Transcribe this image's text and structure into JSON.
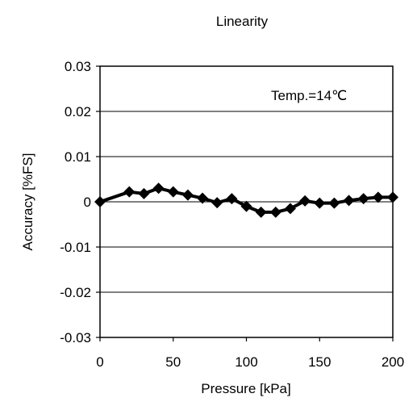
{
  "chart_data": {
    "type": "line",
    "title": "Linearity",
    "xlabel": "Pressure [kPa]",
    "ylabel": "Accuracy [%FS]",
    "xlim": [
      0,
      200
    ],
    "ylim": [
      -0.03,
      0.03
    ],
    "x_ticks": [
      0,
      50,
      100,
      150,
      200
    ],
    "x_tick_labels": [
      "0",
      "50",
      "100",
      "150",
      "200"
    ],
    "y_ticks": [
      0.03,
      0.02,
      0.01,
      0,
      -0.01,
      -0.02,
      -0.03
    ],
    "y_tick_labels": [
      "0.03",
      "0.02",
      "0.01",
      "0",
      "-0.01",
      "-0.02",
      "-0.03"
    ],
    "grid": "horizontal",
    "annotation": "Temp.=14℃",
    "series": [
      {
        "marker": "diamond",
        "color": "#000000",
        "x": [
          0,
          20,
          30,
          40,
          50,
          60,
          70,
          80,
          90,
          100,
          110,
          120,
          130,
          140,
          150,
          160,
          170,
          180,
          190,
          200
        ],
        "values": [
          0,
          0.0022,
          0.0018,
          0.003,
          0.0022,
          0.0015,
          0.0008,
          -0.0002,
          0.0007,
          -0.001,
          -0.0023,
          -0.0023,
          -0.0015,
          0.0002,
          -0.0003,
          -0.0003,
          0.0003,
          0.0007,
          0.001,
          0.001
        ]
      }
    ]
  }
}
